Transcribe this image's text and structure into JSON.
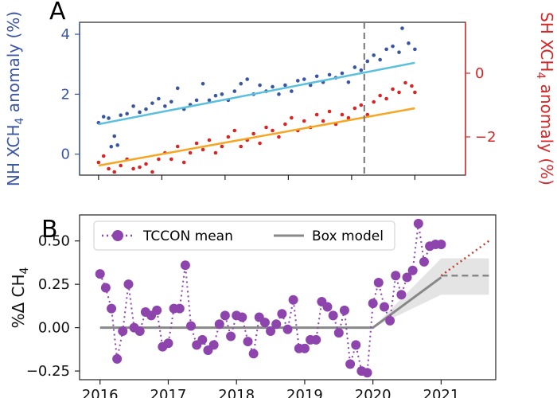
{
  "chart_data": [
    {
      "panel": "A",
      "type": "scatter",
      "x_ticks": [
        "2016",
        "2017",
        "2018",
        "2019",
        "2020",
        "2021"
      ],
      "xlim": [
        2015.7,
        2021.8
      ],
      "left_axis": {
        "label_main": "NH XCH",
        "label_sub": "4",
        "label_tail": " anomaly (%)",
        "ylim": [
          -0.7,
          4.4
        ],
        "ticks": [
          "0",
          "2",
          "4"
        ],
        "tick_values": [
          0,
          2,
          4
        ],
        "color": "#3a55a2"
      },
      "right_axis": {
        "label_main": "SH XCH",
        "label_sub": "4",
        "label_tail": " anomaly (%)",
        "ylim": [
          -3.2,
          1.6
        ],
        "ticks": [
          "−2",
          "0"
        ],
        "tick_values": [
          -2,
          0
        ],
        "color": "#d62728"
      },
      "vline_x": 2020.2,
      "series": [
        {
          "axis": "left",
          "color": "#3a55a2",
          "points": [
            [
              2016.0,
              1.05
            ],
            [
              2016.08,
              1.25
            ],
            [
              2016.16,
              1.2
            ],
            [
              2016.2,
              0.25
            ],
            [
              2016.25,
              0.6
            ],
            [
              2016.3,
              0.3
            ],
            [
              2016.35,
              1.3
            ],
            [
              2016.45,
              1.35
            ],
            [
              2016.55,
              1.6
            ],
            [
              2016.65,
              1.4
            ],
            [
              2016.75,
              1.5
            ],
            [
              2016.85,
              1.7
            ],
            [
              2016.95,
              1.85
            ],
            [
              2017.05,
              1.6
            ],
            [
              2017.15,
              1.75
            ],
            [
              2017.25,
              2.2
            ],
            [
              2017.35,
              1.5
            ],
            [
              2017.45,
              1.65
            ],
            [
              2017.55,
              1.8
            ],
            [
              2017.65,
              2.35
            ],
            [
              2017.75,
              1.8
            ],
            [
              2017.85,
              1.95
            ],
            [
              2017.95,
              2.0
            ],
            [
              2018.05,
              1.8
            ],
            [
              2018.15,
              2.1
            ],
            [
              2018.25,
              2.35
            ],
            [
              2018.35,
              2.5
            ],
            [
              2018.45,
              2.0
            ],
            [
              2018.55,
              2.3
            ],
            [
              2018.65,
              2.1
            ],
            [
              2018.75,
              2.25
            ],
            [
              2018.85,
              2.0
            ],
            [
              2018.95,
              2.3
            ],
            [
              2019.05,
              2.1
            ],
            [
              2019.15,
              2.45
            ],
            [
              2019.25,
              2.5
            ],
            [
              2019.35,
              2.3
            ],
            [
              2019.45,
              2.6
            ],
            [
              2019.55,
              2.4
            ],
            [
              2019.65,
              2.65
            ],
            [
              2019.75,
              2.55
            ],
            [
              2019.85,
              2.7
            ],
            [
              2019.95,
              2.4
            ],
            [
              2020.05,
              2.9
            ],
            [
              2020.15,
              2.8
            ],
            [
              2020.25,
              3.1
            ],
            [
              2020.35,
              3.3
            ],
            [
              2020.45,
              3.15
            ],
            [
              2020.55,
              3.5
            ],
            [
              2020.65,
              3.6
            ],
            [
              2020.75,
              3.4
            ],
            [
              2020.8,
              4.2
            ],
            [
              2020.9,
              3.7
            ],
            [
              2021.0,
              3.5
            ]
          ]
        },
        {
          "axis": "right",
          "color": "#d62728",
          "points": [
            [
              2016.0,
              -2.8
            ],
            [
              2016.08,
              -2.6
            ],
            [
              2016.16,
              -3.0
            ],
            [
              2016.25,
              -3.1
            ],
            [
              2016.35,
              -2.9
            ],
            [
              2016.45,
              -2.7
            ],
            [
              2016.55,
              -3.0
            ],
            [
              2016.65,
              -2.95
            ],
            [
              2016.75,
              -2.85
            ],
            [
              2016.85,
              -3.1
            ],
            [
              2016.95,
              -2.7
            ],
            [
              2017.05,
              -2.5
            ],
            [
              2017.15,
              -2.7
            ],
            [
              2017.25,
              -2.3
            ],
            [
              2017.35,
              -2.8
            ],
            [
              2017.45,
              -2.5
            ],
            [
              2017.55,
              -2.2
            ],
            [
              2017.65,
              -2.4
            ],
            [
              2017.75,
              -2.1
            ],
            [
              2017.85,
              -2.5
            ],
            [
              2017.95,
              -2.3
            ],
            [
              2018.05,
              -2.0
            ],
            [
              2018.15,
              -1.8
            ],
            [
              2018.25,
              -2.3
            ],
            [
              2018.35,
              -2.1
            ],
            [
              2018.45,
              -1.9
            ],
            [
              2018.55,
              -2.2
            ],
            [
              2018.65,
              -1.7
            ],
            [
              2018.75,
              -1.8
            ],
            [
              2018.85,
              -2.0
            ],
            [
              2018.95,
              -1.6
            ],
            [
              2019.05,
              -1.4
            ],
            [
              2019.15,
              -1.8
            ],
            [
              2019.25,
              -1.5
            ],
            [
              2019.35,
              -1.7
            ],
            [
              2019.45,
              -1.3
            ],
            [
              2019.55,
              -1.5
            ],
            [
              2019.65,
              -1.2
            ],
            [
              2019.75,
              -1.6
            ],
            [
              2019.85,
              -1.3
            ],
            [
              2019.95,
              -1.4
            ],
            [
              2020.05,
              -1.1
            ],
            [
              2020.15,
              -1.0
            ],
            [
              2020.25,
              -1.3
            ],
            [
              2020.35,
              -0.9
            ],
            [
              2020.45,
              -0.7
            ],
            [
              2020.55,
              -0.8
            ],
            [
              2020.65,
              -0.5
            ],
            [
              2020.75,
              -0.6
            ],
            [
              2020.85,
              -0.3
            ],
            [
              2020.95,
              -0.4
            ],
            [
              2021.0,
              -0.6
            ]
          ]
        }
      ],
      "trend_lines": [
        {
          "axis": "left",
          "color": "#5bc0de",
          "x": [
            2016.0,
            2021.0
          ],
          "y": [
            1.0,
            3.05
          ]
        },
        {
          "axis": "right",
          "color": "#f5a623",
          "x": [
            2016.0,
            2021.0
          ],
          "y": [
            -2.9,
            -1.1
          ]
        }
      ]
    },
    {
      "panel": "B",
      "type": "line",
      "ylabel_main": "%Δ CH",
      "ylabel_sub": "4",
      "x_ticks": [
        "2016",
        "2017",
        "2018",
        "2019",
        "2020",
        "2021"
      ],
      "xlim": [
        2015.7,
        2021.8
      ],
      "ylim": [
        -0.3,
        0.65
      ],
      "y_ticks": [
        "−0.25",
        "0.00",
        "0.25",
        "0.50"
      ],
      "y_tick_values": [
        -0.25,
        0,
        0.25,
        0.5
      ],
      "legend": [
        {
          "label": "TCCON mean",
          "color": "#8e44ad",
          "style": "dotted-marker"
        },
        {
          "label": "Box model",
          "color": "#888888",
          "style": "solid"
        }
      ],
      "series": [
        {
          "name": "TCCON mean",
          "color": "#8e44ad",
          "x": [
            2016.0,
            2016.083,
            2016.167,
            2016.25,
            2016.333,
            2016.417,
            2016.5,
            2016.583,
            2016.667,
            2016.75,
            2016.833,
            2016.917,
            2017.0,
            2017.083,
            2017.167,
            2017.25,
            2017.333,
            2017.417,
            2017.5,
            2017.583,
            2017.667,
            2017.75,
            2017.833,
            2017.917,
            2018.0,
            2018.083,
            2018.167,
            2018.25,
            2018.333,
            2018.417,
            2018.5,
            2018.583,
            2018.667,
            2018.75,
            2018.833,
            2018.917,
            2019.0,
            2019.083,
            2019.167,
            2019.25,
            2019.333,
            2019.417,
            2019.5,
            2019.583,
            2019.667,
            2019.75,
            2019.833,
            2019.917,
            2020.0,
            2020.083,
            2020.167,
            2020.25,
            2020.333,
            2020.417,
            2020.5,
            2020.583,
            2020.667,
            2020.75,
            2020.833,
            2020.917,
            2021.0
          ],
          "y": [
            0.31,
            0.23,
            0.11,
            -0.18,
            -0.02,
            0.25,
            0.0,
            -0.02,
            0.09,
            0.07,
            0.1,
            -0.11,
            -0.09,
            0.11,
            0.11,
            0.36,
            0.01,
            -0.1,
            -0.07,
            -0.13,
            -0.1,
            0.02,
            0.07,
            -0.05,
            0.07,
            0.06,
            -0.08,
            -0.15,
            0.06,
            0.03,
            -0.02,
            0.02,
            0.08,
            -0.01,
            0.16,
            -0.12,
            -0.12,
            -0.07,
            -0.07,
            0.15,
            0.12,
            0.07,
            -0.03,
            0.1,
            -0.21,
            -0.1,
            -0.25,
            -0.26,
            0.14,
            0.26,
            0.12,
            0.04,
            0.3,
            0.19,
            0.29,
            0.33,
            0.6,
            0.38,
            0.47,
            0.48,
            0.48
          ]
        }
      ],
      "box_model": {
        "color": "#888888",
        "x": [
          2016.0,
          2020.0,
          2021.0
        ],
        "y": [
          0.0,
          0.0,
          0.29
        ],
        "band": {
          "x": [
            2020.0,
            2021.0,
            2021.7
          ],
          "low": [
            0.0,
            0.19,
            0.19
          ],
          "high": [
            0.0,
            0.4,
            0.4
          ]
        },
        "dashed": {
          "x": [
            2021.0,
            2021.7
          ],
          "y": [
            0.3,
            0.3
          ]
        },
        "dotted_red": {
          "color": "#c0392b",
          "x": [
            2021.0,
            2021.7
          ],
          "y": [
            0.3,
            0.5
          ]
        }
      }
    }
  ],
  "panel_labels": {
    "a": "A",
    "b": "B"
  }
}
